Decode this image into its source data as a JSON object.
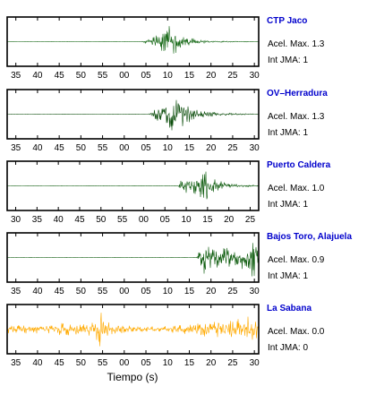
{
  "chart_data": {
    "type": "line",
    "xlabel": "Tiempo (s)",
    "panels": [
      {
        "station": "CTP Jaco",
        "accel_label": "Acel. Max. 1.3",
        "jma_label": "Int JMA: 1",
        "color": "#1a6b1a",
        "xrange": [
          33,
          91
        ],
        "ticks": [
          {
            "v": 35,
            "l": "35"
          },
          {
            "v": 40,
            "l": "40"
          },
          {
            "v": 45,
            "l": "45"
          },
          {
            "v": 50,
            "l": "50"
          },
          {
            "v": 55,
            "l": "55"
          },
          {
            "v": 60,
            "l": "00"
          },
          {
            "v": 65,
            "l": "05"
          },
          {
            "v": 70,
            "l": "10"
          },
          {
            "v": 75,
            "l": "15"
          },
          {
            "v": 80,
            "l": "20"
          },
          {
            "v": 85,
            "l": "25"
          },
          {
            "v": 90,
            "l": "30"
          }
        ],
        "envelope": [
          [
            33,
            0.003
          ],
          [
            64,
            0.005
          ],
          [
            65,
            0.08
          ],
          [
            67,
            0.25
          ],
          [
            69,
            0.45
          ],
          [
            70.5,
            0.95
          ],
          [
            71.5,
            0.6
          ],
          [
            73,
            0.35
          ],
          [
            75,
            0.18
          ],
          [
            78,
            0.07
          ],
          [
            82,
            0.03
          ],
          [
            91,
            0.01
          ]
        ]
      },
      {
        "station": "OV–Herradura",
        "accel_label": "Acel. Max. 1.3",
        "jma_label": "Int JMA: 1",
        "color": "#0b4d0b",
        "xrange": [
          33,
          91
        ],
        "ticks": [
          {
            "v": 35,
            "l": "35"
          },
          {
            "v": 40,
            "l": "40"
          },
          {
            "v": 45,
            "l": "45"
          },
          {
            "v": 50,
            "l": "50"
          },
          {
            "v": 55,
            "l": "55"
          },
          {
            "v": 60,
            "l": "00"
          },
          {
            "v": 65,
            "l": "05"
          },
          {
            "v": 70,
            "l": "10"
          },
          {
            "v": 75,
            "l": "15"
          },
          {
            "v": 80,
            "l": "20"
          },
          {
            "v": 85,
            "l": "25"
          },
          {
            "v": 90,
            "l": "30"
          }
        ],
        "envelope": [
          [
            33,
            0.002
          ],
          [
            65.5,
            0.004
          ],
          [
            66.5,
            0.15
          ],
          [
            68,
            0.35
          ],
          [
            70,
            0.5
          ],
          [
            71.5,
            0.95
          ],
          [
            72.5,
            0.7
          ],
          [
            74,
            0.45
          ],
          [
            76,
            0.28
          ],
          [
            79,
            0.14
          ],
          [
            83,
            0.06
          ],
          [
            88,
            0.03
          ],
          [
            91,
            0.015
          ]
        ]
      },
      {
        "station": "Puerto Caldera",
        "accel_label": "Acel. Max. 1.0",
        "jma_label": "Int JMA: 1",
        "color": "#0b5a0b",
        "xrange": [
          28,
          87
        ],
        "ticks": [
          {
            "v": 30,
            "l": "30"
          },
          {
            "v": 35,
            "l": "35"
          },
          {
            "v": 40,
            "l": "40"
          },
          {
            "v": 45,
            "l": "45"
          },
          {
            "v": 50,
            "l": "50"
          },
          {
            "v": 55,
            "l": "55"
          },
          {
            "v": 60,
            "l": "00"
          },
          {
            "v": 65,
            "l": "05"
          },
          {
            "v": 70,
            "l": "10"
          },
          {
            "v": 75,
            "l": "15"
          },
          {
            "v": 80,
            "l": "20"
          },
          {
            "v": 85,
            "l": "25"
          }
        ],
        "envelope": [
          [
            28,
            0.002
          ],
          [
            68,
            0.004
          ],
          [
            69,
            0.3
          ],
          [
            71,
            0.35
          ],
          [
            73,
            0.4
          ],
          [
            74.5,
            0.95
          ],
          [
            75.5,
            0.6
          ],
          [
            77,
            0.3
          ],
          [
            80,
            0.1
          ],
          [
            84,
            0.04
          ],
          [
            87,
            0.02
          ]
        ]
      },
      {
        "station": "Bajos Toro, Alajuela",
        "accel_label": "Acel. Max. 0.9",
        "jma_label": "Int JMA: 1",
        "color": "#0b5a0b",
        "xrange": [
          33,
          91
        ],
        "ticks": [
          {
            "v": 35,
            "l": "35"
          },
          {
            "v": 40,
            "l": "40"
          },
          {
            "v": 45,
            "l": "45"
          },
          {
            "v": 50,
            "l": "50"
          },
          {
            "v": 55,
            "l": "55"
          },
          {
            "v": 60,
            "l": "00"
          },
          {
            "v": 65,
            "l": "05"
          },
          {
            "v": 70,
            "l": "10"
          },
          {
            "v": 75,
            "l": "15"
          },
          {
            "v": 80,
            "l": "20"
          },
          {
            "v": 85,
            "l": "25"
          },
          {
            "v": 90,
            "l": "30"
          }
        ],
        "envelope": [
          [
            33,
            0.002
          ],
          [
            76.5,
            0.004
          ],
          [
            77.5,
            0.35
          ],
          [
            79,
            0.95
          ],
          [
            80.5,
            0.55
          ],
          [
            82,
            0.45
          ],
          [
            84,
            0.4
          ],
          [
            86,
            0.5
          ],
          [
            88,
            0.65
          ],
          [
            89.5,
            0.9
          ],
          [
            91,
            0.7
          ]
        ]
      },
      {
        "station": "La Sabana",
        "accel_label": "Acel. Max. 0.0",
        "jma_label": "Int JMA: 0",
        "color": "#ffaa00",
        "xrange": [
          33,
          91
        ],
        "ticks": [
          {
            "v": 35,
            "l": "35"
          },
          {
            "v": 40,
            "l": "40"
          },
          {
            "v": 45,
            "l": "45"
          },
          {
            "v": 50,
            "l": "50"
          },
          {
            "v": 55,
            "l": "55"
          },
          {
            "v": 60,
            "l": "00"
          },
          {
            "v": 65,
            "l": "05"
          },
          {
            "v": 70,
            "l": "10"
          },
          {
            "v": 75,
            "l": "15"
          },
          {
            "v": 80,
            "l": "20"
          },
          {
            "v": 85,
            "l": "25"
          },
          {
            "v": 90,
            "l": "30"
          }
        ],
        "envelope": [
          [
            33,
            0.18
          ],
          [
            40,
            0.2
          ],
          [
            44,
            0.25
          ],
          [
            46,
            0.3
          ],
          [
            50,
            0.25
          ],
          [
            53,
            0.3
          ],
          [
            54.5,
            0.9
          ],
          [
            55.5,
            0.4
          ],
          [
            58,
            0.2
          ],
          [
            64,
            0.12
          ],
          [
            68,
            0.12
          ],
          [
            73,
            0.2
          ],
          [
            77,
            0.3
          ],
          [
            81,
            0.4
          ],
          [
            85,
            0.45
          ],
          [
            88,
            0.55
          ],
          [
            91,
            0.5
          ]
        ]
      }
    ]
  }
}
